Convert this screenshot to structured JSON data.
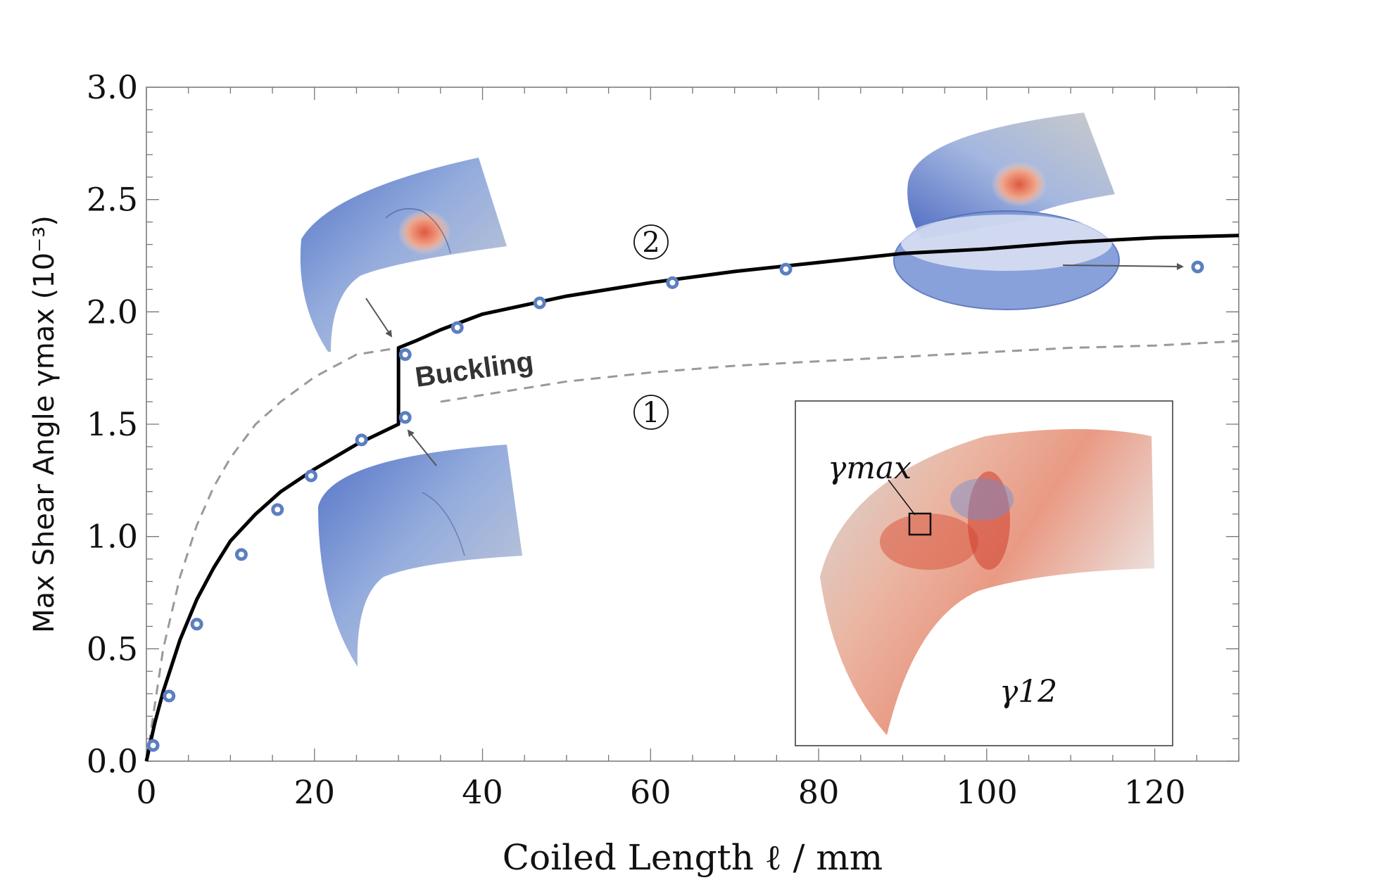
{
  "chart_data": {
    "type": "line",
    "title": "",
    "xlabel": "Coiled Length ℓ / mm",
    "ylabel": "Max Shear Angle γmax (10⁻³)",
    "xlim": [
      0,
      130
    ],
    "ylim": [
      0,
      3.0
    ],
    "x_ticks": [
      "0",
      "20",
      "40",
      "60",
      "80",
      "100",
      "120"
    ],
    "x_tick_values": [
      0,
      20,
      40,
      60,
      80,
      100,
      120
    ],
    "y_ticks": [
      "0.0",
      "0.5",
      "1.0",
      "1.5",
      "2.0",
      "2.5",
      "3.0"
    ],
    "y_tick_values": [
      0,
      0.5,
      1.0,
      1.5,
      2.0,
      2.5,
      3.0
    ],
    "grid": false,
    "series": [
      {
        "style": "dashed-gray",
        "x": [
          0,
          2,
          4,
          6,
          8,
          10,
          13,
          16,
          20,
          25,
          30,
          35,
          40,
          50,
          60,
          70,
          80,
          90,
          100,
          110,
          120,
          130
        ],
        "y": [
          0,
          0.5,
          0.82,
          1.05,
          1.22,
          1.35,
          1.5,
          1.6,
          1.71,
          1.81,
          1.84,
          1.6,
          1.63,
          1.69,
          1.73,
          1.76,
          1.78,
          1.8,
          1.82,
          1.84,
          1.85,
          1.87
        ]
      },
      {
        "style": "solid-black",
        "x": [
          0,
          1,
          2,
          4,
          6,
          8,
          10,
          13,
          16,
          20,
          25,
          30,
          30,
          32,
          35,
          40,
          50,
          60,
          70,
          80,
          90,
          100,
          110,
          120,
          130
        ],
        "y": [
          0,
          0.17,
          0.31,
          0.54,
          0.72,
          0.86,
          0.98,
          1.1,
          1.2,
          1.3,
          1.41,
          1.5,
          1.84,
          1.87,
          1.92,
          1.99,
          2.07,
          2.13,
          2.18,
          2.22,
          2.26,
          2.28,
          2.31,
          2.33,
          2.34
        ]
      },
      {
        "style": "markers-circle",
        "x": [
          0.8,
          2.7,
          6,
          11.3,
          15.6,
          19.6,
          25.6,
          30.8,
          30.8,
          37,
          46.8,
          62.6,
          76.1,
          125.1
        ],
        "y": [
          0.07,
          0.29,
          0.61,
          0.92,
          1.12,
          1.27,
          1.43,
          1.53,
          1.81,
          1.93,
          2.04,
          2.13,
          2.19,
          2.2
        ]
      }
    ],
    "annotations": {
      "branch_1": "1",
      "branch_2": "2",
      "buckling": "Buckling",
      "inset_gamma_max": "γmax",
      "inset_gamma_12": "γ12"
    }
  }
}
